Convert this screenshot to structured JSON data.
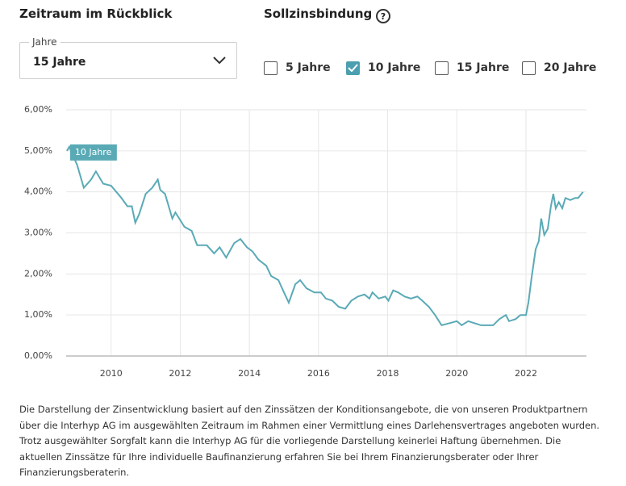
{
  "controls": {
    "period_title": "Zeitraum im Rückblick",
    "select_label": "Jahre",
    "select_value": "15 Jahre",
    "binding_title": "Sollzinsbindung",
    "help": "?",
    "options": [
      {
        "label": "5 Jahre",
        "checked": false
      },
      {
        "label": "10 Jahre",
        "checked": true
      },
      {
        "label": "15 Jahre",
        "checked": false
      },
      {
        "label": "20 Jahre",
        "checked": false
      }
    ]
  },
  "chart_data": {
    "type": "line",
    "x": [
      2008.72,
      2008.79,
      2009.02,
      2009.21,
      2009.42,
      2009.56,
      2009.77,
      2010.0,
      2010.3,
      2010.47,
      2010.6,
      2010.7,
      2010.81,
      2011.0,
      2011.19,
      2011.35,
      2011.42,
      2011.56,
      2011.77,
      2011.86,
      2012.12,
      2012.33,
      2012.49,
      2012.77,
      2012.98,
      2013.14,
      2013.33,
      2013.56,
      2013.74,
      2013.93,
      2014.09,
      2014.26,
      2014.49,
      2014.63,
      2014.84,
      2015.0,
      2015.14,
      2015.33,
      2015.47,
      2015.65,
      2015.88,
      2016.07,
      2016.21,
      2016.4,
      2016.58,
      2016.77,
      2016.95,
      2017.14,
      2017.33,
      2017.47,
      2017.56,
      2017.74,
      2017.93,
      2018.02,
      2018.16,
      2018.3,
      2018.49,
      2018.67,
      2018.86,
      2019.0,
      2019.19,
      2019.37,
      2019.56,
      2019.79,
      2020.0,
      2020.14,
      2020.33,
      2020.51,
      2020.7,
      2020.86,
      2021.05,
      2021.23,
      2021.42,
      2021.51,
      2021.7,
      2021.84,
      2022.0,
      2022.07,
      2022.16,
      2022.28,
      2022.37,
      2022.44,
      2022.53,
      2022.63,
      2022.72,
      2022.79,
      2022.86,
      2022.95,
      2023.05,
      2023.14,
      2023.28,
      2023.42,
      2023.51,
      2023.65
    ],
    "series": [
      {
        "name": "10 Jahre",
        "color": "#5aaab6",
        "values": [
          5.0,
          5.1,
          4.65,
          4.1,
          4.3,
          4.5,
          4.2,
          4.15,
          3.85,
          3.65,
          3.65,
          3.25,
          3.45,
          3.95,
          4.1,
          4.3,
          4.05,
          3.95,
          3.35,
          3.5,
          3.15,
          3.05,
          2.7,
          2.7,
          2.5,
          2.65,
          2.4,
          2.75,
          2.85,
          2.65,
          2.55,
          2.35,
          2.2,
          1.95,
          1.85,
          1.55,
          1.3,
          1.75,
          1.85,
          1.65,
          1.55,
          1.55,
          1.4,
          1.35,
          1.2,
          1.15,
          1.35,
          1.45,
          1.5,
          1.4,
          1.55,
          1.4,
          1.45,
          1.35,
          1.6,
          1.55,
          1.45,
          1.4,
          1.45,
          1.35,
          1.2,
          1.0,
          0.75,
          0.8,
          0.85,
          0.75,
          0.85,
          0.8,
          0.75,
          0.75,
          0.75,
          0.9,
          1.0,
          0.85,
          0.9,
          1.0,
          1.0,
          1.3,
          1.9,
          2.6,
          2.8,
          3.35,
          2.95,
          3.1,
          3.65,
          3.95,
          3.6,
          3.75,
          3.6,
          3.85,
          3.8,
          3.85,
          3.85,
          4.0
        ]
      }
    ],
    "xlim": [
      2008.7,
      2023.75
    ],
    "xticks": [
      2010,
      2012,
      2014,
      2016,
      2018,
      2020,
      2022
    ],
    "ylim": [
      0,
      6
    ],
    "yticks": [
      {
        "value": 0,
        "label": "0,00%"
      },
      {
        "value": 1,
        "label": "1,00%"
      },
      {
        "value": 2,
        "label": "2,00%"
      },
      {
        "value": 3,
        "label": "3,00%"
      },
      {
        "value": 4,
        "label": "4,00%"
      },
      {
        "value": 5,
        "label": "5,00%"
      },
      {
        "value": 6,
        "label": "6,00%"
      }
    ],
    "grid": true
  },
  "disclaimer": "Die Darstellung der Zinsentwicklung basiert auf den Zinssätzen der Konditionsangebote, die von unseren Produktpartnern über die Interhyp AG im ausgewählten Zeitraum im Rahmen einer Vermittlung eines Darlehensvertrages angeboten wurden. Trotz ausgewählter Sorgfalt kann die Interhyp AG für die vorliegende Darstellung keinerlei Haftung übernehmen. Die aktuellen Zinssätze für Ihre individuelle Baufinanzierung erfahren Sie bei Ihrem Finanzierungsberater oder Ihrer Finanzierungsberaterin."
}
